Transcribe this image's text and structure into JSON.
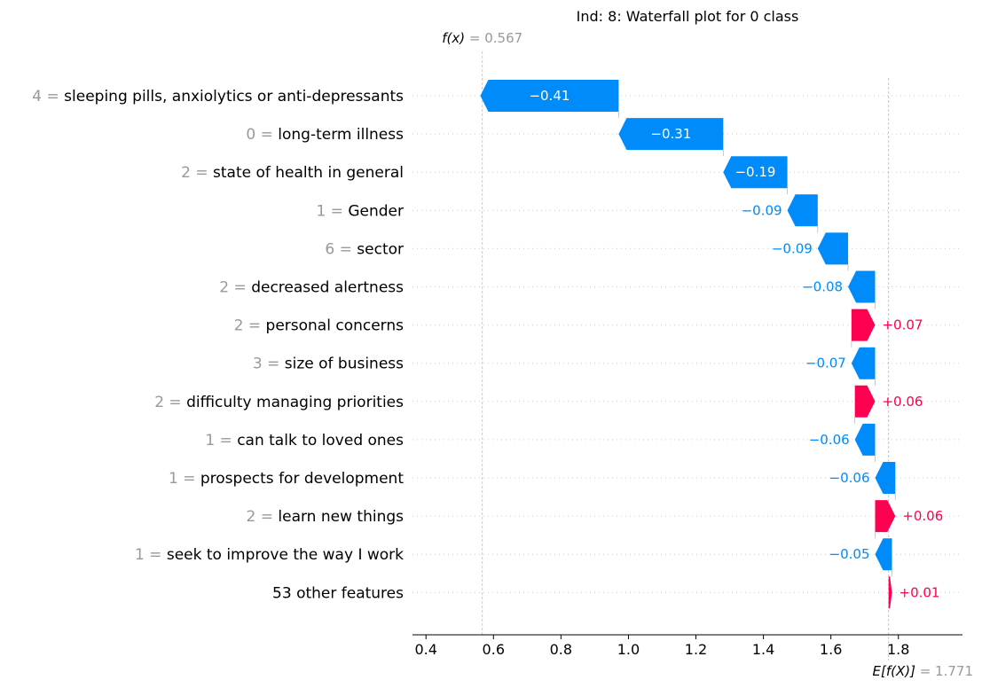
{
  "chart_data": {
    "type": "waterfall",
    "title": "Ind: 8: Waterfall plot for 0 class",
    "fx_label": "f(x)",
    "fx_value": "0.567",
    "fx": 0.567,
    "base_label": "E[f(X)]",
    "base_value_text": "1.771",
    "base_value": 1.771,
    "xlim": [
      0.36,
      1.99
    ],
    "xticks": [
      0.4,
      0.6,
      0.8,
      1.0,
      1.2,
      1.4,
      1.6,
      1.8
    ],
    "xtick_labels": [
      "0.4",
      "0.6",
      "0.8",
      "1.0",
      "1.2",
      "1.4",
      "1.6",
      "1.8"
    ],
    "colors": {
      "positive": "#ff0051",
      "negative": "#008bfb",
      "grey": "#999999"
    },
    "features": [
      {
        "value": "4",
        "name": "sleeping pills, anxiolytics or anti-depressants",
        "shap": -0.41,
        "label": "−0.41"
      },
      {
        "value": "0",
        "name": "long-term illness",
        "shap": -0.31,
        "label": "−0.31"
      },
      {
        "value": "2",
        "name": "state of health in general",
        "shap": -0.19,
        "label": "−0.19"
      },
      {
        "value": "1",
        "name": "Gender",
        "shap": -0.09,
        "label": "−0.09"
      },
      {
        "value": "6",
        "name": "sector",
        "shap": -0.09,
        "label": "−0.09"
      },
      {
        "value": "2",
        "name": "decreased alertness",
        "shap": -0.08,
        "label": "−0.08"
      },
      {
        "value": "2",
        "name": "personal concerns",
        "shap": 0.07,
        "label": "+0.07"
      },
      {
        "value": "3",
        "name": "size of business",
        "shap": -0.07,
        "label": "−0.07"
      },
      {
        "value": "2",
        "name": "difficulty managing priorities",
        "shap": 0.06,
        "label": "+0.06"
      },
      {
        "value": "1",
        "name": "can talk to loved ones",
        "shap": -0.06,
        "label": "−0.06"
      },
      {
        "value": "1",
        "name": "prospects for development",
        "shap": -0.06,
        "label": "−0.06"
      },
      {
        "value": "2",
        "name": "learn new things",
        "shap": 0.06,
        "label": "+0.06"
      },
      {
        "value": "1",
        "name": "seek to improve the way I work",
        "shap": -0.05,
        "label": "−0.05"
      },
      {
        "value": "",
        "name": "53 other features",
        "shap": 0.01,
        "label": "+0.01"
      }
    ]
  }
}
